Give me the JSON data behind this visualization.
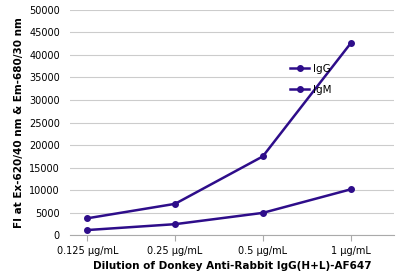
{
  "x_labels": [
    "0.125 μg/mL",
    "0.25 μg/mL",
    "0.5 μg/mL",
    "1 μg/mL"
  ],
  "IgG_values": [
    3800,
    7000,
    17500,
    42500
  ],
  "IgM_values": [
    1200,
    2500,
    5000,
    10200
  ],
  "line_color": "#2e0d8a",
  "marker_style": "o",
  "marker_size": 4,
  "ylabel": "FI at Ex-620/40 nm & Em-680/30 nm",
  "xlabel": "Dilution of Donkey Anti-Rabbit IgG(H+L)-AF647",
  "ylim": [
    0,
    50000
  ],
  "yticks": [
    0,
    5000,
    10000,
    15000,
    20000,
    25000,
    30000,
    35000,
    40000,
    45000,
    50000
  ],
  "axis_label_fontsize": 7.5,
  "tick_fontsize": 7,
  "legend_fontsize": 7.5,
  "background_color": "#ffffff",
  "grid_color": "#cccccc",
  "legend_IgG": "IgG",
  "legend_IgM": "IgM"
}
